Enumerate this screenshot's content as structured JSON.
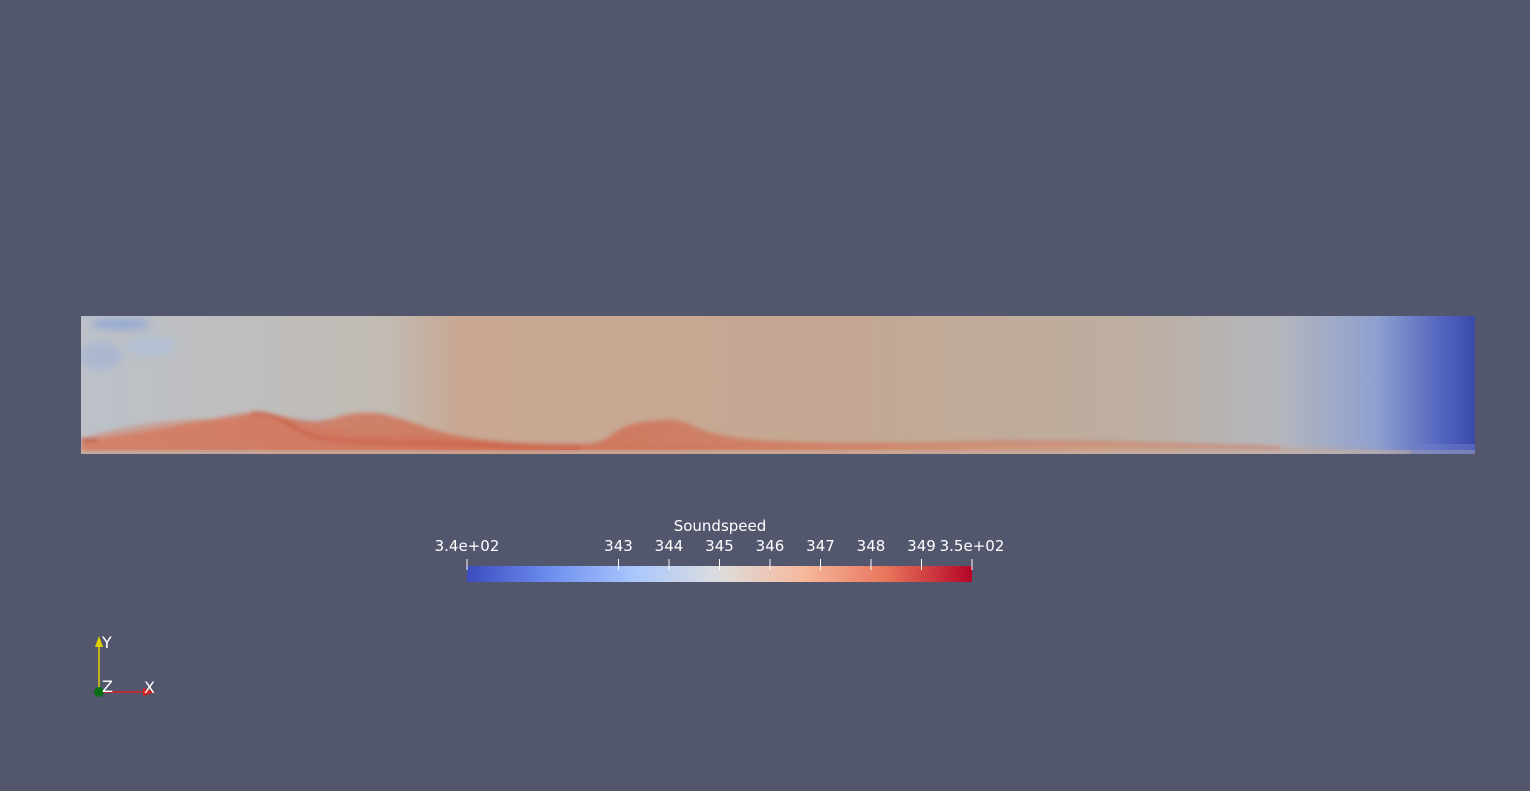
{
  "scalar_bar": {
    "title": "Soundspeed",
    "range": [
      340,
      350
    ],
    "min_label": "3.4e+02",
    "max_label": "3.5e+02",
    "ticks": [
      {
        "value": 343,
        "label": "343"
      },
      {
        "value": 344,
        "label": "344"
      },
      {
        "value": 345,
        "label": "345"
      },
      {
        "value": 346,
        "label": "346"
      },
      {
        "value": 347,
        "label": "347"
      },
      {
        "value": 348,
        "label": "348"
      },
      {
        "value": 349,
        "label": "349"
      }
    ],
    "colormap": [
      "#3b4cc0",
      "#6e8fef",
      "#aac7fd",
      "#dddddd",
      "#f7b89c",
      "#e7745b",
      "#b40426"
    ]
  },
  "axes_triad": {
    "x_label": "X",
    "y_label": "Y",
    "z_label": "Z",
    "x_color": "#d42020",
    "y_color": "#e0d000",
    "z_color": "#0a6e14"
  },
  "background_color": "#52576e"
}
